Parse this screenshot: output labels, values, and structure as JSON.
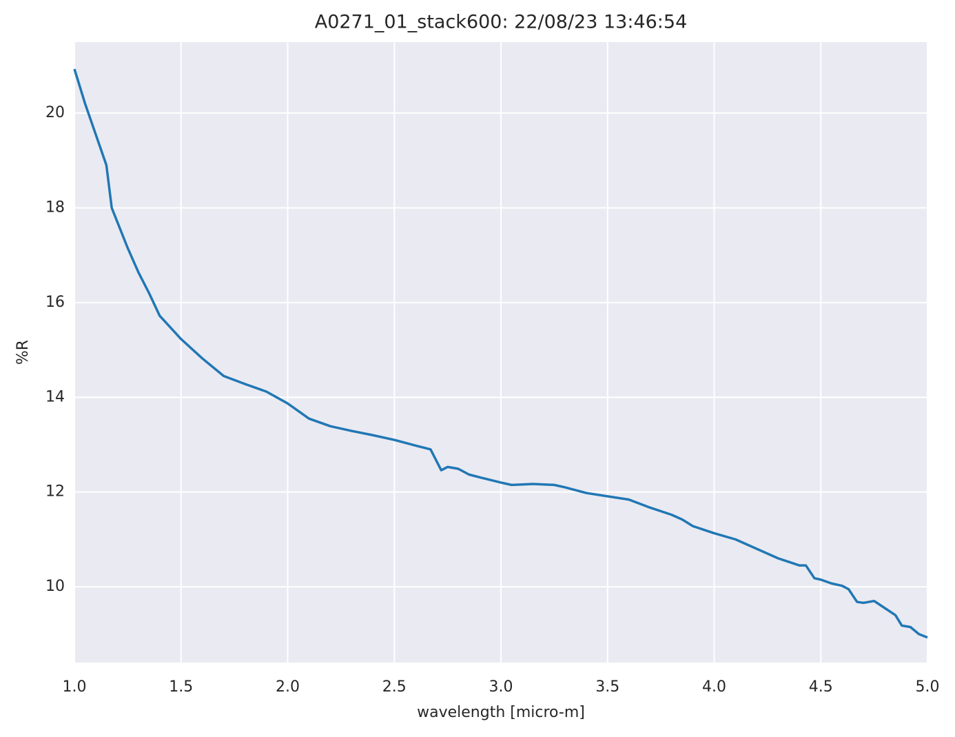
{
  "chart_data": {
    "type": "line",
    "title": "A0271_01_stack600:  22/08/23 13:46:54",
    "xlabel": "wavelength [micro-m]",
    "ylabel": "%R",
    "xlim": [
      1.0,
      5.0
    ],
    "ylim": [
      8.4,
      21.5
    ],
    "xticks": [
      {
        "value": 1.0,
        "label": "1.0"
      },
      1.5,
      {
        "value": 2.0,
        "label": "2.0"
      },
      2.5,
      {
        "value": 3.0,
        "label": "3.0"
      },
      3.5,
      {
        "value": 4.0,
        "label": "4.0"
      },
      4.5,
      {
        "value": 5.0,
        "label": "5.0"
      }
    ],
    "yticks": [
      10,
      12,
      14,
      16,
      18,
      20
    ],
    "grid": true,
    "x": [
      1.0,
      1.02,
      1.05,
      1.1,
      1.15,
      1.175,
      1.25,
      1.3,
      1.35,
      1.4,
      1.5,
      1.6,
      1.7,
      1.8,
      1.9,
      2.0,
      2.1,
      2.2,
      2.3,
      2.4,
      2.5,
      2.6,
      2.67,
      2.72,
      2.75,
      2.8,
      2.85,
      2.9,
      3.0,
      3.05,
      3.15,
      3.25,
      3.3,
      3.4,
      3.5,
      3.6,
      3.7,
      3.8,
      3.85,
      3.9,
      4.0,
      4.1,
      4.2,
      4.3,
      4.4,
      4.43,
      4.47,
      4.5,
      4.55,
      4.6,
      4.63,
      4.67,
      4.7,
      4.75,
      4.8,
      4.85,
      4.88,
      4.92,
      4.96,
      5.0
    ],
    "series": [
      {
        "color": "#2077b4",
        "values": [
          20.93,
          20.64,
          20.2,
          19.55,
          18.9,
          18.0,
          17.15,
          16.64,
          16.2,
          15.72,
          15.23,
          14.82,
          14.45,
          14.28,
          14.12,
          13.87,
          13.55,
          13.39,
          13.29,
          13.2,
          13.1,
          12.98,
          12.9,
          12.46,
          12.53,
          12.49,
          12.37,
          12.31,
          12.2,
          12.15,
          12.17,
          12.15,
          12.1,
          11.98,
          11.91,
          11.84,
          11.67,
          11.52,
          11.42,
          11.28,
          11.13,
          11.0,
          10.8,
          10.6,
          10.45,
          10.45,
          10.18,
          10.15,
          10.07,
          10.02,
          9.95,
          9.68,
          9.66,
          9.7,
          9.55,
          9.4,
          9.18,
          9.15,
          9.0,
          8.93
        ]
      }
    ]
  }
}
